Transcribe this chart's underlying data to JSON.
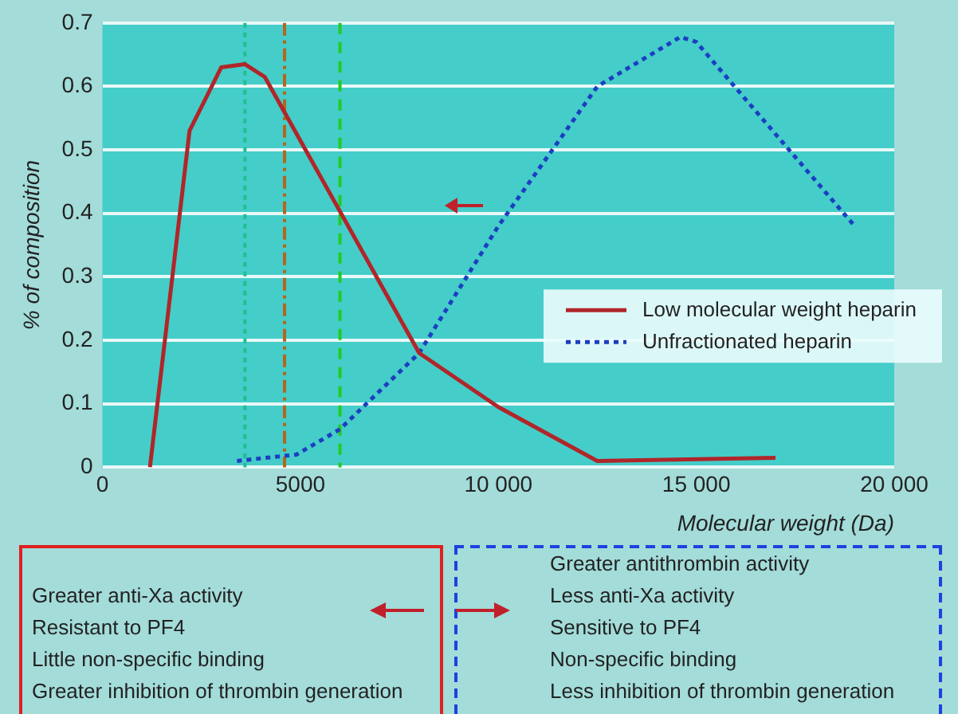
{
  "chart_data": {
    "type": "line",
    "xlabel": "Molecular weight (Da)",
    "ylabel": "% of composition",
    "xlim": [
      0,
      20000
    ],
    "xticks": [
      0,
      5000,
      {
        "value": 10000,
        "label": "10 000"
      },
      {
        "value": 15000,
        "label": "15 000"
      },
      {
        "value": 20000,
        "label": "20 000"
      }
    ],
    "ylim": [
      0,
      0.7
    ],
    "yticks": [
      0,
      0.1,
      0.2,
      0.3,
      0.4,
      0.5,
      0.6,
      0.7
    ],
    "grid": "y",
    "legend": "right",
    "marker": "none",
    "series": [
      {
        "name": "Low molecular weight heparin",
        "color": "#b0262a",
        "line_style": "solid",
        "x": [
          1200,
          2200,
          3000,
          3600,
          4100,
          8000,
          10000,
          12500,
          17000
        ],
        "values": [
          0,
          0.53,
          0.63,
          0.635,
          0.615,
          0.18,
          0.095,
          0.01,
          0.015
        ]
      },
      {
        "name": "Unfractionated heparin",
        "color": "#1c3fc0",
        "line_style": "dotted",
        "x": [
          3400,
          4900,
          6000,
          8000,
          10000,
          12500,
          14600,
          15000,
          19000
        ],
        "values": [
          0.01,
          0.02,
          0.06,
          0.18,
          0.38,
          0.6,
          0.678,
          0.67,
          0.38
        ]
      }
    ],
    "ref_lines": [
      {
        "axis": "x",
        "value": 3600,
        "color": "#1fbf8f",
        "line_style": "dotted"
      },
      {
        "axis": "x",
        "value": 4600,
        "color": "#b5651d",
        "line_style": "dashdot"
      },
      {
        "axis": "x",
        "value": 6000,
        "color": "#22cc22",
        "line_style": "dashed"
      }
    ],
    "annotations": [
      "Greater anti-Xa activity\nResistant to PF4\nLittle non-specific binding\nGreater inhibition of thrombin generation",
      "Greater antithrombin activity\nLess anti-Xa activity\nSensitive to PF4\nNon-specific binding\nLess inhibition of thrombin generation"
    ]
  }
}
